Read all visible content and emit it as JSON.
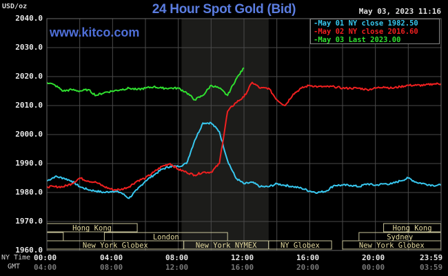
{
  "header": {
    "title": "24 Hour Spot Gold (Bid)",
    "unit": "USD/oz",
    "timestamp": "May 03, 2023 11:16",
    "watermark": "www.kitco.com"
  },
  "legend": [
    {
      "label": "May 01 NY close 1982.50",
      "color": "#38c8f0"
    },
    {
      "label": "May 02 NY close 2016.60",
      "color": "#f02020"
    },
    {
      "label": "May 03 Last 2023.00",
      "color": "#30e030"
    }
  ],
  "y_axis": {
    "ticks": [
      "2040.0",
      "2030.0",
      "2020.0",
      "2010.0",
      "2000.0",
      "1990.0",
      "1980.0",
      "1970.0",
      "1960.0"
    ]
  },
  "x_axis": {
    "row_labels": {
      "ny": "NY Time",
      "gmt": "GMT"
    },
    "ny_ticks": [
      "00:00",
      "04:00",
      "08:00",
      "12:00",
      "16:00",
      "20:00",
      "23:59"
    ],
    "gmt_ticks": [
      "04:00",
      "08:00",
      "12:00",
      "16:00",
      "20:00",
      "00:00",
      "03:59"
    ]
  },
  "sessions": [
    {
      "label": "Hong Kong",
      "row": 0,
      "start": "00:00",
      "end": "05:30"
    },
    {
      "label": "",
      "row": 1,
      "start": "00:00",
      "end": "01:00"
    },
    {
      "label": "London",
      "row": 1,
      "start": "03:30",
      "end": "11:00"
    },
    {
      "label": "New York Globex",
      "row": 2,
      "start": "00:00",
      "end": "08:20"
    },
    {
      "label": "New York NYMEX",
      "row": 2,
      "start": "08:20",
      "end": "13:30"
    },
    {
      "label": "NY Globex",
      "row": 2,
      "start": "13:30",
      "end": "17:20"
    },
    {
      "label": "Hong Kong",
      "row": 0,
      "start": "20:30",
      "end": "23:59"
    },
    {
      "label": "Sydney",
      "row": 1,
      "start": "19:00",
      "end": "23:59"
    },
    {
      "label": "New York Globex",
      "row": 2,
      "start": "18:00",
      "end": "23:59"
    }
  ],
  "chart_data": {
    "type": "line",
    "title": "24 Hour Spot Gold (Bid)",
    "xlabel": "NY Time / GMT",
    "ylabel": "USD/oz",
    "ylim": [
      1960,
      2040
    ],
    "xlim_hours": [
      0,
      24
    ],
    "grid": true,
    "legend_position": "top-right",
    "shaded_region_hours": [
      8.2,
      13.5
    ],
    "x_hours": [
      0,
      0.5,
      1,
      1.5,
      2,
      2.5,
      3,
      3.5,
      4,
      4.5,
      5,
      5.5,
      6,
      6.5,
      7,
      7.5,
      8,
      8.5,
      9,
      9.5,
      10,
      10.5,
      11,
      11.5,
      12,
      12.5,
      13,
      13.5,
      14,
      14.5,
      15,
      15.5,
      16,
      16.5,
      17,
      17.5,
      18,
      18.5,
      19,
      19.5,
      20,
      20.5,
      21,
      21.5,
      22,
      22.5,
      23,
      23.5,
      24
    ],
    "series": [
      {
        "name": "May 01 NY close 1982.50",
        "color": "#38c8f0",
        "values": [
          1984,
          1985.5,
          1985,
          1984,
          1982,
          1981,
          1980.5,
          1980,
          1980.5,
          1980,
          1978,
          1981,
          1984,
          1986,
          1988,
          1989,
          1989,
          1990,
          1998,
          2004,
          2004,
          2001,
          1991,
          1985,
          1983,
          1983.5,
          1982,
          1982,
          1983,
          1982.5,
          1982,
          1981.5,
          1980.5,
          1980,
          1980.5,
          1982.5,
          1982.5,
          1982.5,
          1982,
          1983,
          1982.5,
          1983,
          1983,
          1984,
          1985,
          1983.5,
          1983,
          1982.5,
          1982.5
        ]
      },
      {
        "name": "May 02 NY close 2016.60",
        "color": "#f02020",
        "values": [
          1982,
          1982,
          1982,
          1983,
          1985,
          1984,
          1983.5,
          1982,
          1981,
          1981,
          1982,
          1984,
          1985,
          1987,
          1989,
          1990,
          1988,
          1987,
          1986,
          1987,
          1987,
          1990,
          2008,
          2011,
          2013,
          2018,
          2016,
          2016,
          2012,
          2010,
          2014,
          2016,
          2017,
          2016.5,
          2016.5,
          2016.5,
          2016,
          2016,
          2016,
          2015.5,
          2016,
          2016.5,
          2016,
          2016.5,
          2017,
          2017,
          2017,
          2017.5,
          2017.5
        ]
      },
      {
        "name": "May 03 Last 2023.00",
        "color": "#30e030",
        "values": [
          2018,
          2017,
          2015,
          2015.5,
          2015,
          2015.5,
          2013.5,
          2014.5,
          2015,
          2015.5,
          2016,
          2015.5,
          2016,
          2016.5,
          2016,
          2016,
          2016,
          2014.5,
          2012,
          2013.5,
          2017,
          2016,
          2013.5,
          2019,
          2023
        ]
      }
    ]
  }
}
